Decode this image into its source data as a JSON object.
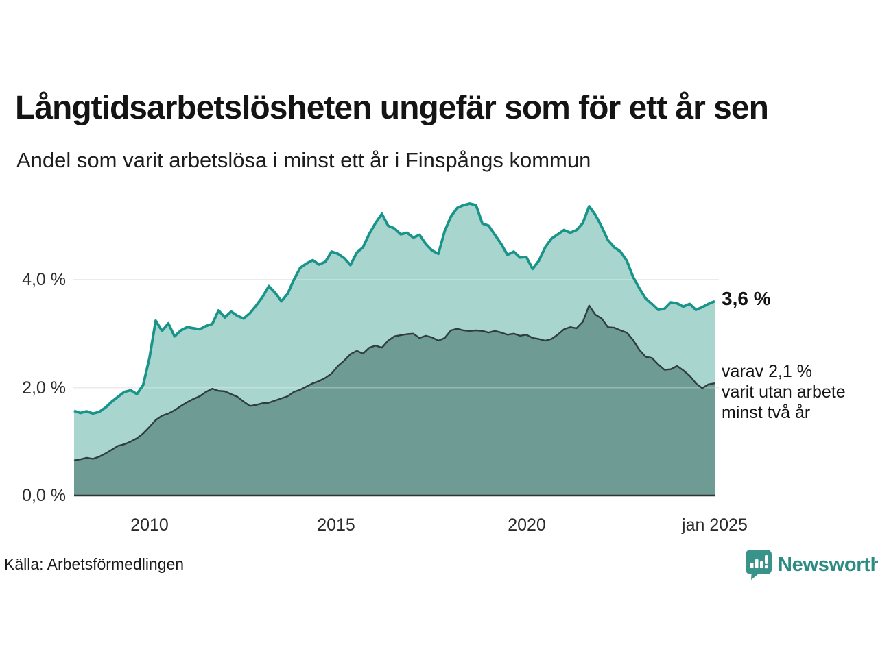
{
  "chart_data": {
    "type": "area",
    "title": "Långtidsarbetslösheten ungefär som för ett år sen",
    "subtitle": "Andel som varit arbetslösa i minst ett år i Finspångs kommun",
    "source": "Källa: Arbetsförmedlingen",
    "x_start_year": 2008.0,
    "x_step_years": 0.1666667,
    "x_domain": [
      2008,
      2025
    ],
    "ylim": [
      0,
      5.65
    ],
    "grid": "horizontal",
    "legend": "inline-annotations",
    "grid_color": "#e4e4e4",
    "axis_color": "#333333",
    "yticks": [
      {
        "value": 0,
        "label": "0,0 %"
      },
      {
        "value": 2,
        "label": "2,0 %"
      },
      {
        "value": 4,
        "label": "4,0 %"
      }
    ],
    "xticks": [
      {
        "value": 2010,
        "label": "2010"
      },
      {
        "value": 2015,
        "label": "2015"
      },
      {
        "value": 2020,
        "label": "2020"
      },
      {
        "value": 2025,
        "label": "jan 2025"
      }
    ],
    "series": [
      {
        "key": "unemployed_min_1_year",
        "annotation": "3,6 %",
        "latest_value": 3.6,
        "line_color": "#18948a",
        "fill_color": "#a8d5ce",
        "values": [
          1.57,
          1.53,
          1.56,
          1.52,
          1.55,
          1.63,
          1.74,
          1.83,
          1.92,
          1.95,
          1.88,
          2.05,
          2.55,
          3.24,
          3.05,
          3.19,
          2.95,
          3.06,
          3.12,
          3.1,
          3.08,
          3.14,
          3.18,
          3.43,
          3.3,
          3.41,
          3.33,
          3.28,
          3.38,
          3.52,
          3.68,
          3.88,
          3.76,
          3.6,
          3.74,
          4.0,
          4.22,
          4.3,
          4.36,
          4.28,
          4.33,
          4.52,
          4.48,
          4.4,
          4.27,
          4.5,
          4.6,
          4.85,
          5.05,
          5.22,
          5.0,
          4.95,
          4.84,
          4.87,
          4.78,
          4.83,
          4.66,
          4.54,
          4.48,
          4.9,
          5.17,
          5.33,
          5.38,
          5.41,
          5.38,
          5.04,
          5.0,
          4.83,
          4.66,
          4.46,
          4.52,
          4.41,
          4.42,
          4.2,
          4.35,
          4.6,
          4.76,
          4.84,
          4.92,
          4.87,
          4.92,
          5.05,
          5.36,
          5.2,
          4.98,
          4.73,
          4.6,
          4.52,
          4.35,
          4.05,
          3.84,
          3.65,
          3.55,
          3.44,
          3.46,
          3.58,
          3.56,
          3.5,
          3.55,
          3.44,
          3.49,
          3.55,
          3.6
        ]
      },
      {
        "key": "unemployed_min_2_years",
        "annotation_lines": [
          "varav 2,1 %",
          "varit utan arbete",
          "minst två år"
        ],
        "latest_value": 2.1,
        "line_color": "#2f3e3c",
        "fill_color": "#6f9b95",
        "values": [
          0.65,
          0.67,
          0.7,
          0.68,
          0.72,
          0.78,
          0.85,
          0.92,
          0.95,
          1.0,
          1.06,
          1.15,
          1.27,
          1.4,
          1.48,
          1.52,
          1.58,
          1.66,
          1.73,
          1.79,
          1.84,
          1.92,
          1.98,
          1.94,
          1.93,
          1.88,
          1.83,
          1.74,
          1.66,
          1.68,
          1.71,
          1.72,
          1.76,
          1.8,
          1.84,
          1.92,
          1.96,
          2.02,
          2.08,
          2.12,
          2.18,
          2.26,
          2.4,
          2.5,
          2.62,
          2.68,
          2.63,
          2.74,
          2.78,
          2.74,
          2.87,
          2.95,
          2.97,
          2.99,
          3.0,
          2.92,
          2.96,
          2.93,
          2.87,
          2.92,
          3.06,
          3.09,
          3.06,
          3.05,
          3.06,
          3.05,
          3.02,
          3.05,
          3.02,
          2.98,
          3.0,
          2.96,
          2.98,
          2.92,
          2.9,
          2.87,
          2.9,
          2.98,
          3.08,
          3.12,
          3.1,
          3.22,
          3.52,
          3.35,
          3.28,
          3.12,
          3.11,
          3.06,
          3.02,
          2.88,
          2.7,
          2.57,
          2.55,
          2.43,
          2.33,
          2.34,
          2.4,
          2.32,
          2.22,
          2.08,
          1.99,
          2.06,
          2.08
        ]
      }
    ]
  },
  "branding": {
    "logo_text": "Newsworthy",
    "logo_bubble_color": "#3a938b",
    "logo_text_color": "#2d8b84"
  }
}
